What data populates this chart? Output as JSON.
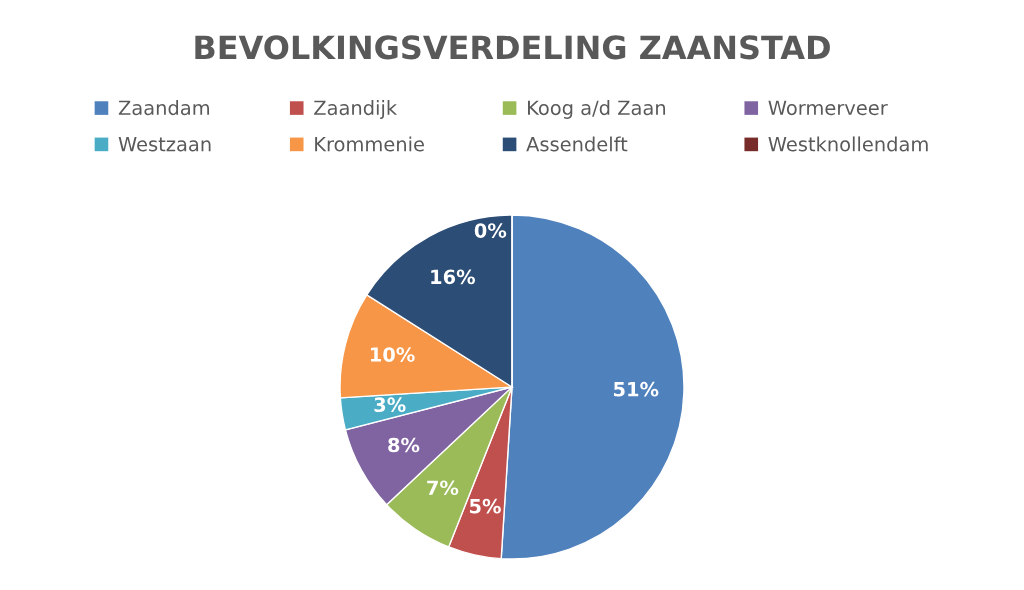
{
  "chart_data": {
    "type": "pie",
    "title": "BEVOLKINGSVERDELING ZAANSTAD",
    "categories": [
      "Zaandam",
      "Zaandijk",
      "Koog a/d Zaan",
      "Wormerveer",
      "Westzaan",
      "Krommenie",
      "Assendelft",
      "Westknollendam"
    ],
    "values": [
      51,
      5,
      7,
      8,
      3,
      10,
      16,
      0
    ],
    "colors": [
      "#4f81bd",
      "#c0504d",
      "#9bbb59",
      "#8064a2",
      "#4bacc6",
      "#f79646",
      "#2c4d75",
      "#772c2a"
    ],
    "value_labels": [
      "51%",
      "5%",
      "7%",
      "8%",
      "3%",
      "10%",
      "16%",
      "0%"
    ],
    "legend": "top"
  }
}
